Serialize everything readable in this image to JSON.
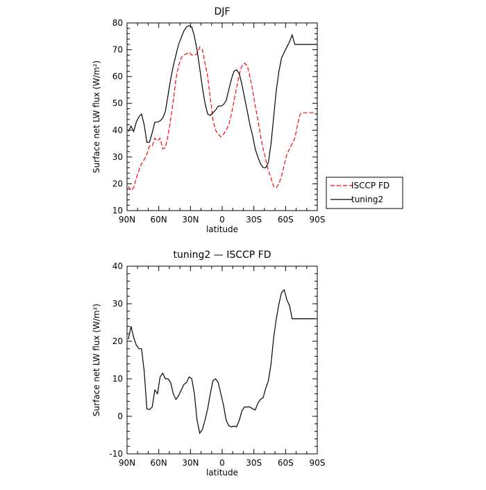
{
  "chart_data": [
    {
      "type": "line",
      "title": "DJF",
      "xlabel": "latitude",
      "ylabel": "Surface net LW flux (W/m²)",
      "xlim": [
        -90,
        90
      ],
      "ylim": [
        10,
        80
      ],
      "grid": false,
      "legend_position": "right",
      "x_ticks": [
        {
          "value": -90,
          "label": "90N"
        },
        {
          "value": -60,
          "label": "60N"
        },
        {
          "value": -30,
          "label": "30N"
        },
        {
          "value": 0,
          "label": "0"
        },
        {
          "value": 30,
          "label": "30S"
        },
        {
          "value": 60,
          "label": "60S"
        },
        {
          "value": 90,
          "label": "90S"
        }
      ],
      "y_ticks": [
        10,
        20,
        30,
        40,
        50,
        60,
        70,
        80
      ],
      "series": [
        {
          "name": "ISCCP FD",
          "color": "#ff0000",
          "style": "dashed",
          "x": [
            -88.75,
            -86.25,
            -83.75,
            -81.25,
            -78.75,
            -76.25,
            -73.75,
            -71.25,
            -68.75,
            -66.25,
            -63.75,
            -61.25,
            -58.75,
            -56.25,
            -53.75,
            -51.25,
            -48.75,
            -46.25,
            -43.75,
            -41.25,
            -38.75,
            -36.25,
            -33.75,
            -31.25,
            -28.75,
            -26.25,
            -23.75,
            -21.25,
            -18.75,
            -16.25,
            -13.75,
            -11.25,
            -8.75,
            -6.25,
            -3.75,
            -1.25,
            1.25,
            3.75,
            6.25,
            8.75,
            11.25,
            13.75,
            16.25,
            18.75,
            21.25,
            23.75,
            26.25,
            28.75,
            31.25,
            33.75,
            36.25,
            38.75,
            41.25,
            43.75,
            46.25,
            48.75,
            51.25,
            53.75,
            56.25,
            58.75,
            61.25,
            63.75,
            66.25,
            68.75,
            71.25,
            73.75,
            76.25,
            78.75,
            81.25,
            83.75,
            86.25,
            88.75
          ],
          "values": [
            19,
            17.5,
            18.5,
            22,
            25,
            27.5,
            29,
            31,
            34,
            34,
            37,
            36,
            37,
            33,
            33.5,
            38,
            44,
            51,
            59,
            64,
            67,
            68,
            68.5,
            69,
            68,
            68,
            68.5,
            71,
            70,
            65,
            60,
            52,
            44,
            40,
            38.5,
            37.5,
            38.5,
            40,
            42,
            46,
            51,
            56,
            61,
            64,
            65,
            64,
            60,
            55,
            49,
            44,
            38,
            33,
            29,
            25,
            22,
            19,
            18.5,
            20,
            23,
            27,
            31,
            33,
            35,
            37,
            42,
            46,
            46.5,
            46.5,
            46.5,
            46.5,
            46.5,
            46.5
          ]
        },
        {
          "name": "tuning2",
          "color": "#000000",
          "style": "solid",
          "x": [
            -88.75,
            -86.25,
            -83.75,
            -81.25,
            -78.75,
            -76.25,
            -73.75,
            -71.25,
            -68.75,
            -66.25,
            -63.75,
            -61.25,
            -58.75,
            -56.25,
            -53.75,
            -51.25,
            -48.75,
            -46.25,
            -43.75,
            -41.25,
            -38.75,
            -36.25,
            -33.75,
            -31.25,
            -28.75,
            -26.25,
            -23.75,
            -21.25,
            -18.75,
            -16.25,
            -13.75,
            -11.25,
            -8.75,
            -6.25,
            -3.75,
            -1.25,
            1.25,
            3.75,
            6.25,
            8.75,
            11.25,
            13.75,
            16.25,
            18.75,
            21.25,
            23.75,
            26.25,
            28.75,
            31.25,
            33.75,
            36.25,
            38.75,
            41.25,
            43.75,
            46.25,
            48.75,
            51.25,
            53.75,
            56.25,
            58.75,
            61.25,
            63.75,
            66.25,
            68.75,
            71.25,
            73.75,
            76.25,
            78.75,
            81.25,
            83.75,
            86.25,
            88.75
          ],
          "values": [
            39.5,
            41.5,
            39.5,
            43,
            45,
            46,
            42,
            35.5,
            35.5,
            39,
            43,
            43,
            43.5,
            44.5,
            47,
            53,
            59,
            64,
            68,
            72,
            74.5,
            77,
            78.5,
            79,
            78.5,
            75,
            70,
            63,
            56,
            50,
            46,
            45.5,
            46.5,
            47.5,
            49,
            49,
            49.5,
            51,
            55,
            59,
            62,
            62.5,
            61,
            57,
            52,
            47,
            42,
            38,
            33,
            30,
            27.5,
            26,
            26,
            28,
            35,
            45,
            55,
            62,
            67,
            69,
            71,
            73,
            75.5,
            72,
            72,
            72,
            72,
            72,
            72,
            72,
            72,
            72
          ]
        }
      ]
    },
    {
      "type": "line",
      "title": "tuning2 — ISCCP FD",
      "xlabel": "latitude",
      "ylabel": "Surface net LW flux (W/m²)",
      "xlim": [
        -90,
        90
      ],
      "ylim": [
        -10,
        40
      ],
      "grid": false,
      "x_ticks": [
        {
          "value": -90,
          "label": "90N"
        },
        {
          "value": -60,
          "label": "60N"
        },
        {
          "value": -30,
          "label": "30N"
        },
        {
          "value": 0,
          "label": "0"
        },
        {
          "value": 30,
          "label": "30S"
        },
        {
          "value": 60,
          "label": "60S"
        },
        {
          "value": 90,
          "label": "90S"
        }
      ],
      "y_ticks": [
        -10,
        0,
        10,
        20,
        30,
        40
      ],
      "series": [
        {
          "color": "#000000",
          "style": "solid",
          "x": [
            -88.75,
            -86.25,
            -83.75,
            -81.25,
            -78.75,
            -76.25,
            -73.75,
            -71.25,
            -68.75,
            -66.25,
            -63.75,
            -61.25,
            -58.75,
            -56.25,
            -53.75,
            -51.25,
            -48.75,
            -46.25,
            -43.75,
            -41.25,
            -38.75,
            -36.25,
            -33.75,
            -31.25,
            -28.75,
            -26.25,
            -23.75,
            -21.25,
            -18.75,
            -16.25,
            -13.75,
            -11.25,
            -8.75,
            -6.25,
            -3.75,
            -1.25,
            1.25,
            3.75,
            6.25,
            8.75,
            11.25,
            13.75,
            16.25,
            18.75,
            21.25,
            23.75,
            26.25,
            28.75,
            31.25,
            33.75,
            36.25,
            38.75,
            41.25,
            43.75,
            46.25,
            48.75,
            51.25,
            53.75,
            56.25,
            58.75,
            61.25,
            63.75,
            66.25,
            68.75,
            71.25,
            73.75,
            76.25,
            78.75,
            81.25,
            83.75,
            86.25,
            88.75
          ],
          "values": [
            20.5,
            24,
            21,
            19,
            18,
            18,
            12,
            2,
            1.8,
            2.5,
            7,
            6,
            10.5,
            11.5,
            10,
            10,
            9,
            6,
            4.5,
            5.5,
            7,
            8.5,
            9,
            10.5,
            10,
            6,
            -1,
            -4.5,
            -3.5,
            -1,
            2,
            6,
            9.5,
            10,
            9,
            6,
            3,
            -1,
            -2.5,
            -2.8,
            -2.6,
            -2.8,
            -1,
            1.5,
            2.5,
            2.5,
            2.5,
            2,
            1.7,
            3.5,
            4.5,
            5,
            7.5,
            9.5,
            14,
            21,
            26,
            30,
            33,
            33.7,
            31,
            29.5,
            26,
            26,
            26,
            26,
            26,
            26,
            26,
            26,
            26,
            26
          ]
        }
      ]
    }
  ]
}
